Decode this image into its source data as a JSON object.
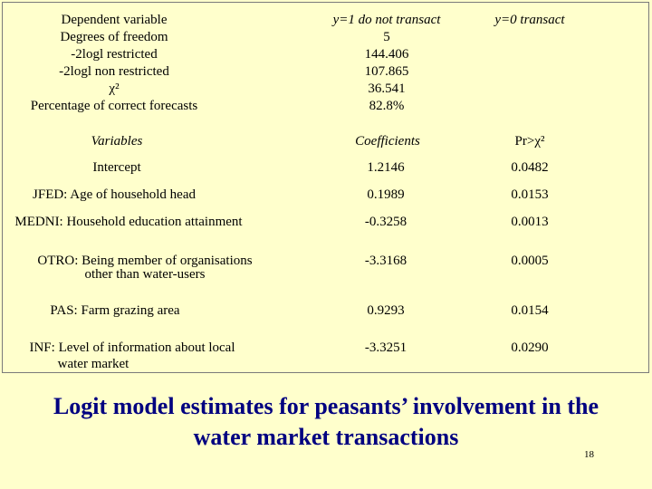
{
  "stats": {
    "labels": [
      "Dependent variable",
      "Degrees of freedom",
      "-2logl restricted",
      "-2logl non restricted",
      "χ²",
      "Percentage of correct forecasts"
    ],
    "col1_header": "y=1 do not transact",
    "col1_values": [
      "5",
      "144.406",
      "107.865",
      "36.541",
      "82.8%"
    ],
    "col2_header": "y=0 transact"
  },
  "table": {
    "headers": [
      "Variables",
      "Coefficients",
      "Pr>χ²"
    ],
    "rows": [
      {
        "variable": [
          "Intercept"
        ],
        "coef": "1.2146",
        "pr": "0.0482"
      },
      {
        "variable": [
          "JFED: Age of household head"
        ],
        "coef": "0.1989",
        "pr": "0.0153"
      },
      {
        "variable": [
          "MEDNI: Household education attainment"
        ],
        "coef": "-0.3258",
        "pr": "0.0013"
      },
      {
        "variable": [
          "OTRO: Being member of organisations",
          "other than water-users"
        ],
        "coef": "-3.3168",
        "pr": "0.0005"
      },
      {
        "variable": [
          "PAS: Farm grazing area"
        ],
        "coef": "0.9293",
        "pr": "0.0154"
      },
      {
        "variable": [
          "INF: Level of information about local",
          "water market"
        ],
        "coef": "-3.3251",
        "pr": "0.0290"
      }
    ]
  },
  "caption": [
    "Logit model estimates for peasants’ involvement in the",
    "water market transactions"
  ],
  "page_number": "18"
}
